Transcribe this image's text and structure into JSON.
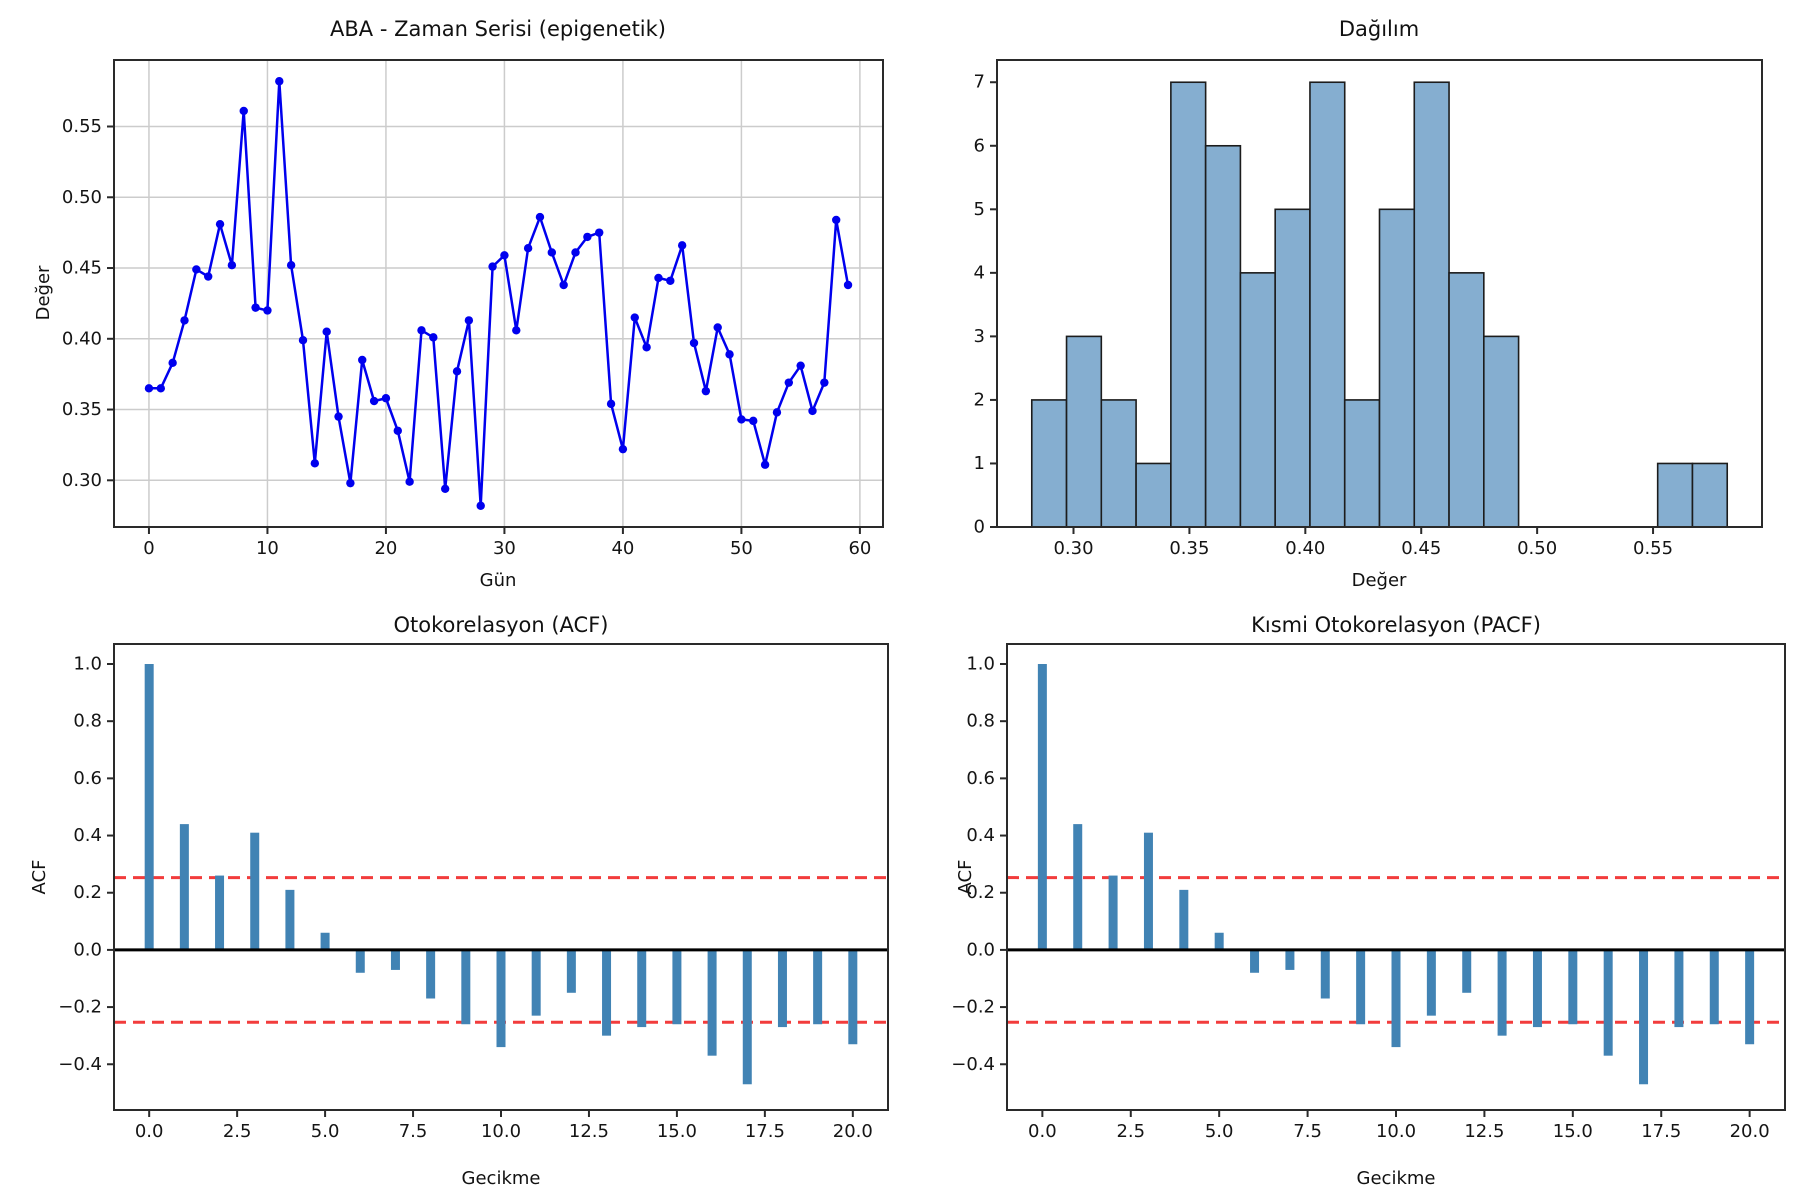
{
  "colors": {
    "background": "#ffffff",
    "line_blue": "#0000ee",
    "marker_blue": "#0000ee",
    "hist_fill": "#85aed0",
    "hist_edge": "#1c1c1c",
    "acf_bar": "#4183b4",
    "conf_line_red": "#f23c3c",
    "zero_line": "#000000",
    "grid": "#cccccc",
    "spine": "#2a2a2a",
    "text": "#151515"
  },
  "chart_data": [
    {
      "type": "line",
      "title": "ABA - Zaman Serisi (epigenetik)",
      "xlabel": "Gün",
      "ylabel": "Değer",
      "x": [
        0,
        1,
        2,
        3,
        4,
        5,
        6,
        7,
        8,
        9,
        10,
        11,
        12,
        13,
        14,
        15,
        16,
        17,
        18,
        19,
        20,
        21,
        22,
        23,
        24,
        25,
        26,
        27,
        28,
        29,
        30,
        31,
        32,
        33,
        34,
        35,
        36,
        37,
        38,
        39,
        40,
        41,
        42,
        43,
        44,
        45,
        46,
        47,
        48,
        49,
        50,
        51,
        52,
        53,
        54,
        55,
        56,
        57,
        58,
        59
      ],
      "values": [
        0.365,
        0.365,
        0.383,
        0.413,
        0.449,
        0.444,
        0.481,
        0.452,
        0.561,
        0.422,
        0.42,
        0.582,
        0.452,
        0.399,
        0.312,
        0.405,
        0.345,
        0.298,
        0.385,
        0.356,
        0.358,
        0.335,
        0.299,
        0.406,
        0.401,
        0.294,
        0.377,
        0.413,
        0.282,
        0.451,
        0.459,
        0.406,
        0.464,
        0.486,
        0.461,
        0.438,
        0.461,
        0.472,
        0.475,
        0.354,
        0.322,
        0.415,
        0.394,
        0.443,
        0.441,
        0.466,
        0.397,
        0.363,
        0.408,
        0.389,
        0.343,
        0.342,
        0.311,
        0.348,
        0.369,
        0.381,
        0.349,
        0.369,
        0.484,
        0.438
      ],
      "xlim": [
        -2.95,
        61.95
      ],
      "ylim": [
        0.267,
        0.597
      ],
      "xtick_vals": [
        0,
        10,
        20,
        30,
        40,
        50,
        60
      ],
      "xtick_labels": [
        "0",
        "10",
        "20",
        "30",
        "40",
        "50",
        "60"
      ],
      "ytick_vals": [
        0.3,
        0.35,
        0.4,
        0.45,
        0.5,
        0.55
      ],
      "ytick_labels": [
        "0.30",
        "0.35",
        "0.40",
        "0.45",
        "0.50",
        "0.55"
      ],
      "grid": true
    },
    {
      "type": "histogram",
      "title": "Dağılım",
      "xlabel": "Değer",
      "ylabel": "",
      "bin_start": 0.282,
      "bin_width": 0.015,
      "counts": [
        2,
        3,
        2,
        1,
        7,
        6,
        4,
        5,
        7,
        2,
        5,
        7,
        4,
        3,
        0,
        0,
        0,
        0,
        1,
        1
      ],
      "xlim": [
        0.267,
        0.597
      ],
      "ylim": [
        0,
        7.35
      ],
      "xtick_vals": [
        0.3,
        0.35,
        0.4,
        0.45,
        0.5,
        0.55
      ],
      "xtick_labels": [
        "0.30",
        "0.35",
        "0.40",
        "0.45",
        "0.50",
        "0.55"
      ],
      "ytick_vals": [
        0,
        1,
        2,
        3,
        4,
        5,
        6,
        7
      ],
      "ytick_labels": [
        "0",
        "1",
        "2",
        "3",
        "4",
        "5",
        "6",
        "7"
      ],
      "grid": false
    },
    {
      "type": "acf",
      "title": "Otokorelasyon (ACF)",
      "xlabel": "Gecikme",
      "ylabel": "ACF",
      "lags": [
        0,
        1,
        2,
        3,
        4,
        5,
        6,
        7,
        8,
        9,
        10,
        11,
        12,
        13,
        14,
        15,
        16,
        17,
        18,
        19,
        20
      ],
      "values": [
        1.0,
        0.44,
        0.26,
        0.41,
        0.21,
        0.06,
        -0.08,
        -0.07,
        -0.17,
        -0.26,
        -0.34,
        -0.23,
        -0.15,
        -0.3,
        -0.27,
        -0.26,
        -0.37,
        -0.47,
        -0.27,
        -0.26,
        -0.33
      ],
      "conf_level": 0.253,
      "xlim": [
        -1,
        21
      ],
      "ylim": [
        -0.56,
        1.07
      ],
      "xtick_vals": [
        0,
        2.5,
        5,
        7.5,
        10,
        12.5,
        15,
        17.5,
        20
      ],
      "xtick_labels": [
        "0.0",
        "2.5",
        "5.0",
        "7.5",
        "10.0",
        "12.5",
        "15.0",
        "17.5",
        "20.0"
      ],
      "ytick_vals": [
        -0.4,
        -0.2,
        0.0,
        0.2,
        0.4,
        0.6,
        0.8,
        1.0
      ],
      "ytick_labels": [
        "−0.4",
        "−0.2",
        "0.0",
        "0.2",
        "0.4",
        "0.6",
        "0.8",
        "1.0"
      ],
      "grid": false
    },
    {
      "type": "acf",
      "title": "Kısmi Otokorelasyon (PACF)",
      "xlabel": "Gecikme",
      "ylabel": "ACF",
      "lags": [
        0,
        1,
        2,
        3,
        4,
        5,
        6,
        7,
        8,
        9,
        10,
        11,
        12,
        13,
        14,
        15,
        16,
        17,
        18,
        19,
        20
      ],
      "values": [
        1.0,
        0.44,
        0.26,
        0.41,
        0.21,
        0.06,
        -0.08,
        -0.07,
        -0.17,
        -0.26,
        -0.34,
        -0.23,
        -0.15,
        -0.3,
        -0.27,
        -0.26,
        -0.37,
        -0.47,
        -0.27,
        -0.26,
        -0.33
      ],
      "conf_level": 0.253,
      "xlim": [
        -1,
        21
      ],
      "ylim": [
        -0.56,
        1.07
      ],
      "xtick_vals": [
        0,
        2.5,
        5,
        7.5,
        10,
        12.5,
        15,
        17.5,
        20
      ],
      "xtick_labels": [
        "0.0",
        "2.5",
        "5.0",
        "7.5",
        "10.0",
        "12.5",
        "15.0",
        "17.5",
        "20.0"
      ],
      "ytick_vals": [
        -0.4,
        -0.2,
        0.0,
        0.2,
        0.4,
        0.6,
        0.8,
        1.0
      ],
      "ytick_labels": [
        "−0.4",
        "−0.2",
        "0.0",
        "0.2",
        "0.4",
        "0.6",
        "0.8",
        "1.0"
      ],
      "grid": false
    }
  ]
}
